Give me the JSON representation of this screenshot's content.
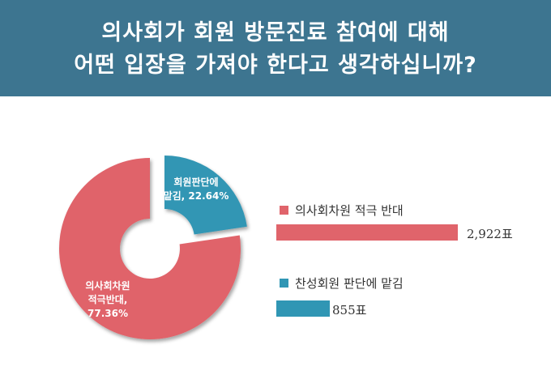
{
  "title": {
    "line1": "의사회가 회원 방문진료 참여에 대해",
    "line2": "어떤 입장을 가져야 한다고 생각하십니까?"
  },
  "colors": {
    "header_bg": "#3d7590",
    "red": "#e0646b",
    "blue": "#3096b4"
  },
  "chart_data": {
    "type": "pie",
    "title": "의사회가 회원 방문진료 참여에 대해 어떤 입장을 가져야 한다고 생각하십니까?",
    "slices": [
      {
        "name": "의사회차원 적극 반대",
        "label_lines": [
          "의사회차원",
          "적극반대,",
          "77.36%"
        ],
        "percent": 77.36,
        "votes": 2922,
        "votes_label": "2,922표",
        "color": "#e0646b"
      },
      {
        "name": "찬성회원 판단에 맡김",
        "label_lines": [
          "회원판단에",
          "맡김, 22.64%"
        ],
        "percent": 22.64,
        "votes": 855,
        "votes_label": "855표",
        "color": "#3096b4"
      }
    ]
  }
}
